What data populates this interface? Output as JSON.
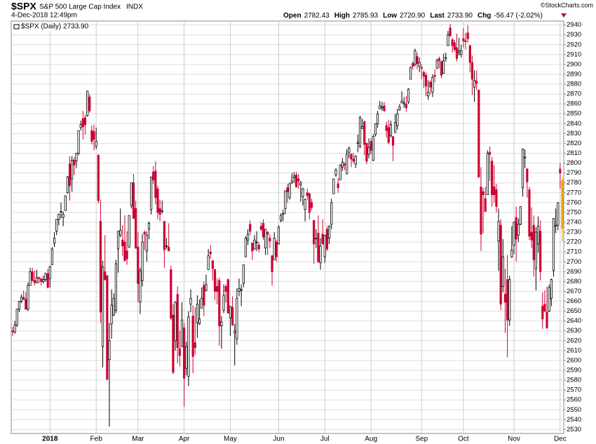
{
  "header": {
    "symbol": "$SPX",
    "name": "S&P 500 Large Cap Index",
    "exchange": "INDX",
    "timestamp": "4-Dec-2018 12:49pm",
    "quote": [
      {
        "label": "Open",
        "value": "2782.43"
      },
      {
        "label": "High",
        "value": "2785.93"
      },
      {
        "label": "Low",
        "value": "2720.90"
      },
      {
        "label": "Last",
        "value": "2733.90"
      },
      {
        "label": "Chg",
        "value": "-56.47 (-2.02%)"
      }
    ],
    "copyright": "©StockCharts.com"
  },
  "chart_data": {
    "type": "candlestick",
    "legend": "$SPX (Daily) 2733.90",
    "up_color": "#000000",
    "down_color": "#cc0033",
    "highlight_color": "#f0a000",
    "ylim": [
      2526,
      2944
    ],
    "yticks": [
      2530,
      2540,
      2550,
      2560,
      2570,
      2580,
      2590,
      2600,
      2610,
      2620,
      2630,
      2640,
      2650,
      2660,
      2670,
      2680,
      2690,
      2700,
      2710,
      2720,
      2730,
      2740,
      2750,
      2760,
      2770,
      2780,
      2790,
      2800,
      2810,
      2820,
      2830,
      2840,
      2850,
      2860,
      2870,
      2880,
      2890,
      2900,
      2910,
      2920,
      2930,
      2940
    ],
    "grid": true,
    "categories": [
      null,
      null,
      null,
      null,
      null,
      null,
      null,
      null,
      null,
      null,
      null,
      null,
      null,
      null,
      null,
      null,
      null,
      "2018",
      null,
      null,
      null,
      null,
      null,
      null,
      null,
      null,
      null,
      null,
      null,
      null,
      null,
      null,
      null,
      null,
      null,
      null,
      null,
      null,
      "Feb",
      null,
      null,
      null,
      null,
      null,
      null,
      null,
      null,
      null,
      null,
      null,
      null,
      null,
      null,
      null,
      null,
      null,
      null,
      "Mar",
      null,
      null,
      null,
      null,
      null,
      null,
      null,
      null,
      null,
      null,
      null,
      null,
      null,
      null,
      null,
      null,
      null,
      null,
      null,
      null,
      "Apr",
      null,
      null,
      null,
      null,
      null,
      null,
      null,
      null,
      null,
      null,
      null,
      null,
      null,
      null,
      null,
      null,
      null,
      null,
      null,
      null,
      "May",
      null,
      null,
      null,
      null,
      null,
      null,
      null,
      null,
      null,
      null,
      null,
      null,
      null,
      null,
      null,
      null,
      null,
      null,
      null,
      null,
      null,
      "Jun",
      null,
      null,
      null,
      null,
      null,
      null,
      null,
      null,
      null,
      null,
      null,
      null,
      null,
      null,
      null,
      null,
      null,
      null,
      null,
      null,
      "Jul",
      null,
      null,
      null,
      null,
      null,
      null,
      null,
      null,
      null,
      null,
      null,
      null,
      null,
      null,
      null,
      null,
      null,
      null,
      null,
      null,
      "Aug",
      null,
      null,
      null,
      null,
      null,
      null,
      null,
      null,
      null,
      null,
      null,
      null,
      null,
      null,
      null,
      null,
      null,
      null,
      null,
      null,
      null,
      null,
      "Sep",
      null,
      null,
      null,
      null,
      null,
      null,
      null,
      null,
      null,
      null,
      null,
      null,
      null,
      null,
      null,
      null,
      null,
      null,
      "Oct",
      null,
      null,
      null,
      null,
      null,
      null,
      null,
      null,
      null,
      null,
      null,
      null,
      null,
      null,
      null,
      null,
      null,
      null,
      null,
      null,
      null,
      null,
      "Nov",
      null,
      null,
      null,
      null,
      null,
      null,
      null,
      null,
      null,
      null,
      null,
      null,
      null,
      null,
      null,
      null,
      null,
      null,
      null,
      null,
      "Dec",
      null
    ],
    "open": [
      2630,
      2629,
      2636,
      2652,
      2660,
      2664,
      2662,
      2652,
      2676,
      2690,
      2681,
      2679,
      2684,
      2683,
      2680,
      2682,
      2688,
      2683,
      2697,
      2719,
      2731,
      2743,
      2751,
      2745,
      2752,
      2770,
      2799,
      2784,
      2803,
      2802,
      2810,
      2836,
      2845,
      2846,
      2848,
      2867,
      2833,
      2832,
      2817,
      2808,
      2741,
      2614,
      2690,
      2686,
      2601,
      2637,
      2646,
      2651,
      2713,
      2727,
      2722,
      2720,
      2711,
      2715,
      2757,
      2780,
      2754,
      2715,
      2659,
      2681,
      2730,
      2711,
      2733,
      2753,
      2791,
      2792,
      2774,
      2754,
      2751,
      2741,
      2716,
      2715,
      2692,
      2646,
      2620,
      2667,
      2612,
      2614,
      2633,
      2592,
      2584,
      2657,
      2645,
      2618,
      2638,
      2637,
      2653,
      2676,
      2671,
      2692,
      2710,
      2701,
      2692,
      2675,
      2681,
      2635,
      2651,
      2675,
      2682,
      2643,
      2654,
      2628,
      2622,
      2670,
      2671,
      2678,
      2705,
      2722,
      2738,
      2719,
      2713,
      2720,
      2717,
      2736,
      2739,
      2714,
      2730,
      2724,
      2706,
      2702,
      2720,
      2718,
      2742,
      2749,
      2754,
      2775,
      2765,
      2780,
      2785,
      2788,
      2784,
      2778,
      2766,
      2753,
      2770,
      2769,
      2760,
      2742,
      2723,
      2729,
      2699,
      2728,
      2705,
      2733,
      2724,
      2738,
      2769,
      2788,
      2779,
      2783,
      2796,
      2799,
      2789,
      2811,
      2809,
      2804,
      2799,
      2820,
      2817,
      2835,
      2842,
      2820,
      2809,
      2822,
      2803,
      2829,
      2840,
      2855,
      2856,
      2858,
      2838,
      2836,
      2828,
      2827,
      2831,
      2838,
      2854,
      2861,
      2860,
      2860,
      2862,
      2885,
      2901,
      2900,
      2908,
      2898,
      2897,
      2892,
      2889,
      2868,
      2882,
      2872,
      2889,
      2896,
      2906,
      2903,
      2891,
      2906,
      2919,
      2937,
      2925,
      2922,
      2917,
      2912,
      2910,
      2926,
      2924,
      2932,
      2919,
      2902,
      2877,
      2883,
      2874,
      2776,
      2771,
      2764,
      2768,
      2811,
      2802,
      2776,
      2773,
      2721,
      2737,
      2675,
      2667,
      2682,
      2641,
      2705,
      2717,
      2745,
      2727,
      2738,
      2775,
      2806,
      2794,
      2773,
      2730,
      2737,
      2693,
      2718,
      2731,
      2655,
      2657,
      2649,
      2650,
      2663,
      2691,
      2736,
      2737,
      2794,
      2782.43
    ],
    "high": [
      2634,
      2640,
      2652,
      2660,
      2667,
      2671,
      2669,
      2679,
      2694,
      2694,
      2691,
      2692,
      2685,
      2683,
      2686,
      2689,
      2693,
      2696,
      2715,
      2730,
      2743,
      2749,
      2760,
      2751,
      2767,
      2787,
      2807,
      2807,
      2806,
      2810,
      2833,
      2843,
      2853,
      2849,
      2873,
      2870,
      2838,
      2839,
      2836,
      2809,
      2763,
      2701,
      2727,
      2686,
      2638,
      2672,
      2668,
      2702,
      2731,
      2754,
      2737,
      2747,
      2731,
      2747,
      2780,
      2789,
      2762,
      2730,
      2694,
      2728,
      2732,
      2731,
      2741,
      2786,
      2797,
      2802,
      2777,
      2763,
      2762,
      2741,
      2724,
      2739,
      2696,
      2657,
      2660,
      2675,
      2630,
      2659,
      2638,
      2619,
      2650,
      2672,
      2656,
      2654,
      2666,
      2662,
      2674,
      2680,
      2687,
      2713,
      2717,
      2702,
      2693,
      2683,
      2684,
      2645,
      2677,
      2677,
      2683,
      2655,
      2665,
      2637,
      2673,
      2683,
      2677,
      2697,
      2726,
      2733,
      2742,
      2719,
      2727,
      2731,
      2720,
      2740,
      2743,
      2733,
      2731,
      2728,
      2707,
      2730,
      2722,
      2737,
      2749,
      2753,
      2772,
      2779,
      2780,
      2790,
      2791,
      2791,
      2789,
      2782,
      2775,
      2764,
      2774,
      2770,
      2764,
      2742,
      2733,
      2747,
      2724,
      2743,
      2727,
      2736,
      2737,
      2764,
      2784,
      2795,
      2785,
      2799,
      2805,
      2801,
      2814,
      2817,
      2810,
      2810,
      2808,
      2829,
      2848,
      2845,
      2843,
      2821,
      2825,
      2825,
      2829,
      2840,
      2853,
      2863,
      2862,
      2862,
      2842,
      2844,
      2843,
      2827,
      2850,
      2855,
      2860,
      2873,
      2867,
      2868,
      2876,
      2898,
      2903,
      2916,
      2912,
      2907,
      2900,
      2894,
      2892,
      2884,
      2884,
      2890,
      2895,
      2906,
      2908,
      2904,
      2911,
      2912,
      2934,
      2941,
      2927,
      2925,
      2931,
      2927,
      2920,
      2937,
      2932,
      2940,
      2920,
      2909,
      2894,
      2894,
      2874,
      2796,
      2775,
      2776,
      2813,
      2817,
      2806,
      2798,
      2779,
      2754,
      2743,
      2723,
      2693,
      2707,
      2686,
      2736,
      2741,
      2756,
      2744,
      2756,
      2815,
      2814,
      2795,
      2776,
      2755,
      2747,
      2735,
      2746,
      2742,
      2669,
      2671,
      2675,
      2677,
      2683,
      2744,
      2754,
      2760,
      2800,
      2785.93
    ],
    "low": [
      2625,
      2627,
      2634,
      2649,
      2658,
      2661,
      2651,
      2650,
      2676,
      2680,
      2676,
      2678,
      2678,
      2676,
      2678,
      2680,
      2673,
      2674,
      2697,
      2715,
      2727,
      2737,
      2744,
      2736,
      2752,
      2769,
      2762,
      2771,
      2788,
      2795,
      2808,
      2833,
      2824,
      2829,
      2847,
      2851,
      2819,
      2813,
      2814,
      2759,
      2638,
      2593,
      2681,
      2580,
      2533,
      2622,
      2645,
      2648,
      2689,
      2725,
      2706,
      2701,
      2697,
      2714,
      2754,
      2744,
      2713,
      2659,
      2647,
      2675,
      2712,
      2700,
      2723,
      2748,
      2779,
      2758,
      2743,
      2741,
      2749,
      2694,
      2713,
      2711,
      2641,
      2586,
      2610,
      2597,
      2594,
      2614,
      2553,
      2585,
      2574,
      2649,
      2587,
      2606,
      2623,
      2636,
      2653,
      2645,
      2670,
      2692,
      2703,
      2681,
      2661,
      2657,
      2615,
      2612,
      2648,
      2659,
      2648,
      2625,
      2635,
      2595,
      2616,
      2665,
      2655,
      2674,
      2705,
      2717,
      2727,
      2702,
      2712,
      2711,
      2710,
      2731,
      2722,
      2707,
      2707,
      2714,
      2676,
      2702,
      2700,
      2718,
      2740,
      2741,
      2748,
      2760,
      2763,
      2779,
      2780,
      2775,
      2774,
      2761,
      2757,
      2741,
      2763,
      2743,
      2752,
      2698,
      2714,
      2699,
      2692,
      2718,
      2699,
      2711,
      2718,
      2733,
      2769,
      2786,
      2770,
      2783,
      2792,
      2793,
      2789,
      2805,
      2796,
      2800,
      2795,
      2811,
      2815,
      2835,
      2808,
      2799,
      2805,
      2809,
      2802,
      2827,
      2836,
      2855,
      2853,
      2852,
      2826,
      2819,
      2826,
      2802,
      2831,
      2834,
      2853,
      2861,
      2856,
      2852,
      2860,
      2885,
      2895,
      2898,
      2895,
      2892,
      2885,
      2876,
      2868,
      2864,
      2870,
      2867,
      2882,
      2896,
      2896,
      2886,
      2891,
      2903,
      2919,
      2928,
      2912,
      2913,
      2903,
      2909,
      2907,
      2917,
      2915,
      2922,
      2892,
      2869,
      2862,
      2874,
      2785,
      2711,
      2729,
      2751,
      2768,
      2782,
      2756,
      2760,
      2750,
      2691,
      2651,
      2669,
      2628,
      2603,
      2635,
      2704,
      2708,
      2700,
      2720,
      2737,
      2766,
      2795,
      2765,
      2722,
      2714,
      2685,
      2671,
      2709,
      2681,
      2632,
      2649,
      2632,
      2649,
      2655,
      2685,
      2729,
      2732,
      2774,
      2720.9
    ],
    "close": [
      2629,
      2636,
      2652,
      2660,
      2664,
      2662,
      2652,
      2676,
      2690,
      2681,
      2679,
      2684,
      2683,
      2680,
      2682,
      2688,
      2674,
      2695,
      2713,
      2724,
      2743,
      2748,
      2751,
      2748,
      2767,
      2786,
      2777,
      2803,
      2798,
      2810,
      2833,
      2839,
      2837,
      2839,
      2873,
      2853,
      2822,
      2824,
      2822,
      2762,
      2649,
      2695,
      2682,
      2581,
      2620,
      2656,
      2663,
      2698,
      2731,
      2732,
      2716,
      2701,
      2703,
      2747,
      2780,
      2744,
      2714,
      2678,
      2691,
      2720,
      2728,
      2727,
      2739,
      2786,
      2783,
      2765,
      2750,
      2748,
      2752,
      2712,
      2716,
      2711,
      2643,
      2588,
      2659,
      2613,
      2605,
      2641,
      2582,
      2614,
      2644,
      2663,
      2604,
      2613,
      2657,
      2642,
      2663,
      2656,
      2677,
      2706,
      2708,
      2693,
      2670,
      2670,
      2635,
      2639,
      2666,
      2670,
      2648,
      2655,
      2636,
      2630,
      2663,
      2673,
      2672,
      2697,
      2724,
      2728,
      2731,
      2711,
      2722,
      2720,
      2713,
      2733,
      2725,
      2733,
      2728,
      2721,
      2690,
      2724,
      2705,
      2735,
      2747,
      2749,
      2772,
      2771,
      2779,
      2782,
      2787,
      2776,
      2782,
      2780,
      2774,
      2763,
      2767,
      2750,
      2755,
      2718,
      2724,
      2700,
      2716,
      2718,
      2727,
      2713,
      2736,
      2760,
      2784,
      2793,
      2775,
      2798,
      2801,
      2798,
      2809,
      2815,
      2804,
      2802,
      2807,
      2821,
      2846,
      2837,
      2819,
      2802,
      2816,
      2813,
      2827,
      2840,
      2850,
      2858,
      2857,
      2853,
      2833,
      2821,
      2839,
      2818,
      2841,
      2850,
      2857,
      2863,
      2861,
      2856,
      2875,
      2897,
      2898,
      2914,
      2901,
      2902,
      2896,
      2888,
      2878,
      2872,
      2877,
      2887,
      2888,
      2904,
      2904,
      2889,
      2904,
      2907,
      2930,
      2929,
      2919,
      2915,
      2906,
      2914,
      2914,
      2924,
      2923,
      2926,
      2902,
      2885,
      2884,
      2881,
      2786,
      2728,
      2768,
      2751,
      2810,
      2809,
      2768,
      2768,
      2756,
      2741,
      2657,
      2705,
      2659,
      2641,
      2682,
      2712,
      2740,
      2723,
      2738,
      2756,
      2814,
      2806,
      2781,
      2726,
      2722,
      2702,
      2730,
      2736,
      2690,
      2642,
      2650,
      2633,
      2674,
      2682,
      2744,
      2737,
      2760,
      2790,
      2733.9
    ]
  }
}
